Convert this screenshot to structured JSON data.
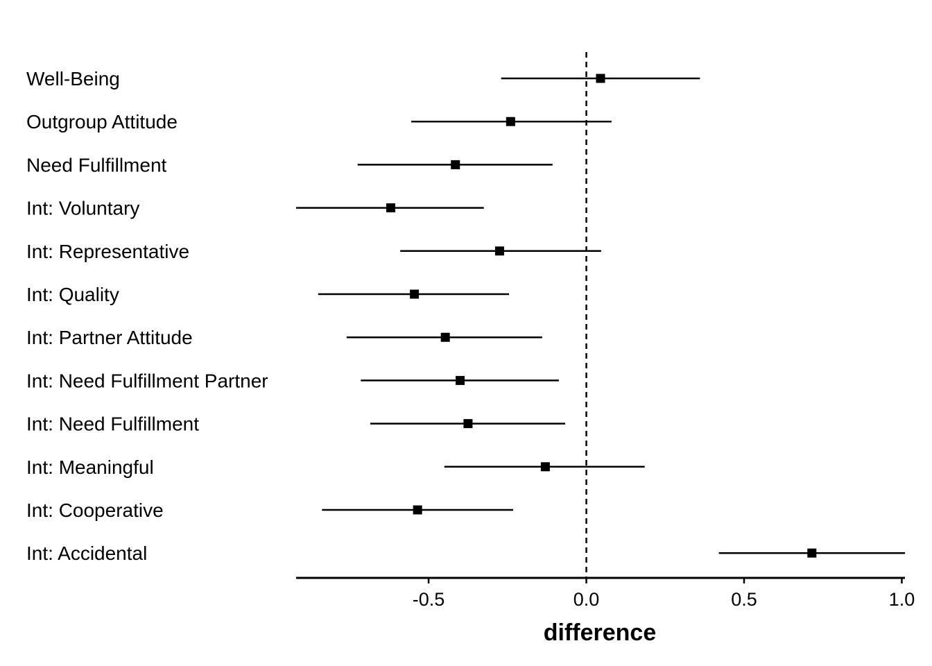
{
  "chart_data": {
    "type": "forest",
    "xlabel": "difference",
    "xlim": [
      -0.92,
      1.01
    ],
    "xticks": [
      {
        "value": -0.5,
        "label": "-0.5"
      },
      {
        "value": 0.0,
        "label": "0.0"
      },
      {
        "value": 0.5,
        "label": "0.5"
      },
      {
        "value": 1.0,
        "label": "1.0"
      }
    ],
    "reference_line": 0,
    "grid": false,
    "legend": "none",
    "marker": "square",
    "color": "#000000",
    "items": [
      {
        "label": "Well-Being",
        "estimate": 0.045,
        "lower": -0.27,
        "upper": 0.36
      },
      {
        "label": "Outgroup Attitude",
        "estimate": -0.24,
        "lower": -0.555,
        "upper": 0.08
      },
      {
        "label": "Need Fulfillment",
        "estimate": -0.415,
        "lower": -0.725,
        "upper": -0.107
      },
      {
        "label": "Int: Voluntary",
        "estimate": -0.62,
        "lower": -0.92,
        "upper": -0.325
      },
      {
        "label": "Int: Representative",
        "estimate": -0.275,
        "lower": -0.59,
        "upper": 0.047
      },
      {
        "label": "Int: Quality",
        "estimate": -0.545,
        "lower": -0.85,
        "upper": -0.245
      },
      {
        "label": "Int: Partner Attitude",
        "estimate": -0.447,
        "lower": -0.76,
        "upper": -0.14
      },
      {
        "label": "Int: Need Fulfillment Partner",
        "estimate": -0.4,
        "lower": -0.715,
        "upper": -0.087
      },
      {
        "label": "Int: Need Fulfillment",
        "estimate": -0.375,
        "lower": -0.685,
        "upper": -0.067
      },
      {
        "label": "Int: Meaningful",
        "estimate": -0.13,
        "lower": -0.45,
        "upper": 0.185
      },
      {
        "label": "Int: Cooperative",
        "estimate": -0.535,
        "lower": -0.838,
        "upper": -0.232
      },
      {
        "label": "Int: Accidental",
        "estimate": 0.715,
        "lower": 0.42,
        "upper": 1.01
      }
    ]
  }
}
